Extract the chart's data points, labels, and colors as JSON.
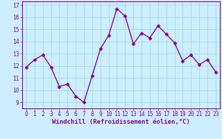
{
  "x": [
    0,
    1,
    2,
    3,
    4,
    5,
    6,
    7,
    8,
    9,
    10,
    11,
    12,
    13,
    14,
    15,
    16,
    17,
    18,
    19,
    20,
    21,
    22,
    23
  ],
  "y": [
    11.9,
    12.5,
    12.9,
    11.9,
    10.3,
    10.5,
    9.5,
    9.0,
    11.2,
    13.4,
    14.5,
    16.7,
    16.1,
    13.8,
    14.7,
    14.3,
    15.3,
    14.6,
    13.9,
    12.4,
    12.9,
    12.1,
    12.5,
    11.5
  ],
  "line_color": "#880088",
  "marker": "D",
  "markersize": 2.5,
  "linewidth": 1.0,
  "bg_color": "#cceeff",
  "grid_color": "#aadddd",
  "xlabel": "Windchill (Refroidissement éolien,°C)",
  "xlabel_fontsize": 6.5,
  "ylim": [
    8.5,
    17.3
  ],
  "xlim": [
    -0.5,
    23.5
  ],
  "yticks": [
    9,
    10,
    11,
    12,
    13,
    14,
    15,
    16,
    17
  ],
  "xticks": [
    0,
    1,
    2,
    3,
    4,
    5,
    6,
    7,
    8,
    9,
    10,
    11,
    12,
    13,
    14,
    15,
    16,
    17,
    18,
    19,
    20,
    21,
    22,
    23
  ],
  "tick_fontsize": 5.8,
  "tick_color": "#880088",
  "spine_color": "#880088"
}
